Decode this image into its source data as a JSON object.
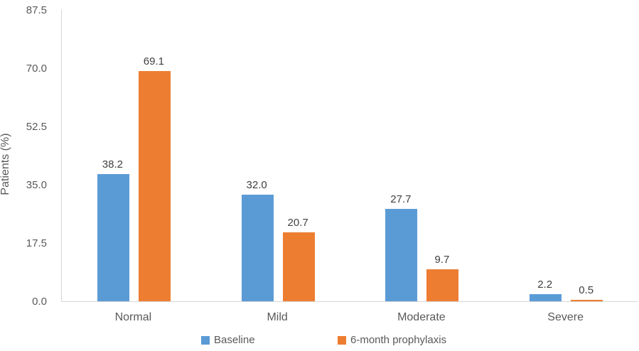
{
  "chart_data": {
    "type": "bar",
    "title": "",
    "xlabel": "",
    "ylabel": "Patients (%)",
    "categories": [
      "Normal",
      "Mild",
      "Moderate",
      "Severe"
    ],
    "series": [
      {
        "name": "Baseline",
        "color": "#5B9BD5",
        "values": [
          38.2,
          32.0,
          27.7,
          2.2
        ],
        "labels": [
          "38.2",
          "32.0",
          "27.7",
          "2.2"
        ]
      },
      {
        "name": "6-month prophylaxis",
        "color": "#ED7D31",
        "values": [
          69.1,
          20.7,
          9.7,
          0.5
        ],
        "labels": [
          "69.1",
          "20.7",
          "9.7",
          "0.5"
        ]
      }
    ],
    "ylim": [
      0,
      87.5
    ],
    "yticks": [
      "0.0",
      "17.5",
      "35.0",
      "52.5",
      "70.0",
      "87.5"
    ],
    "grid": false,
    "legend_position": "bottom",
    "data_labels": true,
    "axis_color": "#d6d6d6",
    "tick_text_color": "#595959",
    "data_label_color": "#404040"
  }
}
